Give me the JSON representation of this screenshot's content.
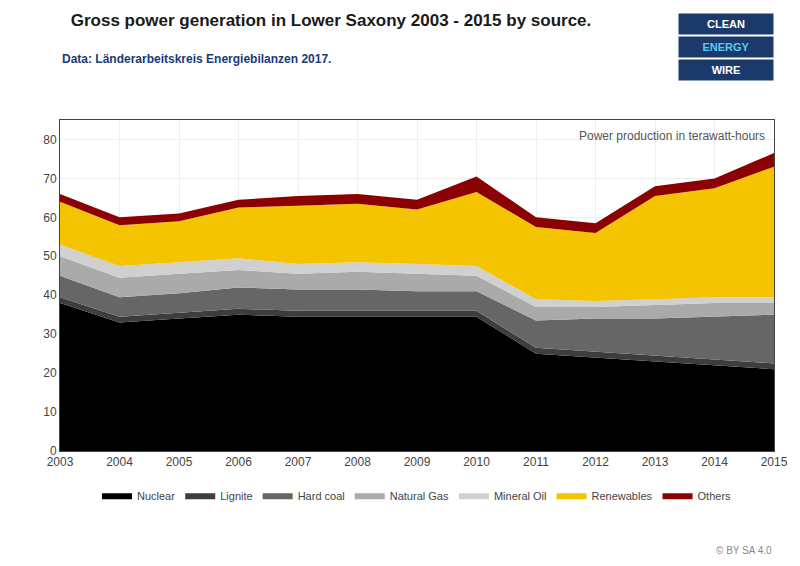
{
  "chart_data": {
    "type": "area",
    "stacked": true,
    "title": "Gross power generation in Lower Saxony 2003 - 2015 by source.",
    "subtitle": "Data: Länderarbeitskreis Energiebilanzen 2017.",
    "ylabel": "Power production in terawatt-hours",
    "annotations": [
      "CLEAN",
      "ENERGY",
      "WIRE",
      "© BY SA 4.0"
    ],
    "x": [
      2003,
      2004,
      2005,
      2006,
      2007,
      2008,
      2009,
      2010,
      2011,
      2012,
      2013,
      2014,
      2015
    ],
    "xlim": [
      2003,
      2015
    ],
    "xticks": [
      2003,
      2004,
      2005,
      2006,
      2007,
      2008,
      2009,
      2010,
      2011,
      2012,
      2013,
      2014,
      2015
    ],
    "ylim": [
      0,
      85
    ],
    "yticks": [
      0,
      10,
      20,
      30,
      40,
      50,
      60,
      70,
      80
    ],
    "grid": true,
    "legend": "lower center",
    "series": [
      {
        "name": "Nuclear",
        "color": "#000000",
        "values": [
          38.0,
          33.0,
          34.0,
          35.0,
          34.5,
          34.5,
          34.5,
          34.5,
          25.0,
          24.0,
          23.0,
          22.0,
          21.0
        ]
      },
      {
        "name": "Lignite",
        "color": "#3d3d3d",
        "values": [
          1.5,
          1.5,
          1.5,
          1.5,
          1.5,
          1.5,
          1.5,
          1.5,
          1.5,
          1.5,
          1.5,
          1.5,
          1.5
        ]
      },
      {
        "name": "Hard coal",
        "color": "#666666",
        "values": [
          5.5,
          5.0,
          5.0,
          5.5,
          5.5,
          5.5,
          5.0,
          5.0,
          7.0,
          8.5,
          9.5,
          11.0,
          12.5
        ]
      },
      {
        "name": "Natural Gas",
        "color": "#aaaaaa",
        "values": [
          5.0,
          5.0,
          5.0,
          4.5,
          4.0,
          4.5,
          4.5,
          4.0,
          3.5,
          3.0,
          3.5,
          3.5,
          3.0
        ]
      },
      {
        "name": "Mineral Oil",
        "color": "#d0d0d0",
        "values": [
          3.0,
          3.0,
          3.0,
          3.0,
          2.5,
          2.5,
          2.5,
          2.5,
          2.0,
          1.5,
          1.5,
          1.5,
          1.5
        ]
      },
      {
        "name": "Renewables",
        "color": "#f5c400",
        "values": [
          11.0,
          10.5,
          10.5,
          13.0,
          15.0,
          15.0,
          14.0,
          19.0,
          18.5,
          17.5,
          26.5,
          28.0,
          33.5
        ]
      },
      {
        "name": "Others",
        "color": "#8b0000",
        "values": [
          2.0,
          2.0,
          2.0,
          2.0,
          2.5,
          2.5,
          2.5,
          4.0,
          2.5,
          2.5,
          2.5,
          2.5,
          3.5
        ]
      }
    ]
  }
}
